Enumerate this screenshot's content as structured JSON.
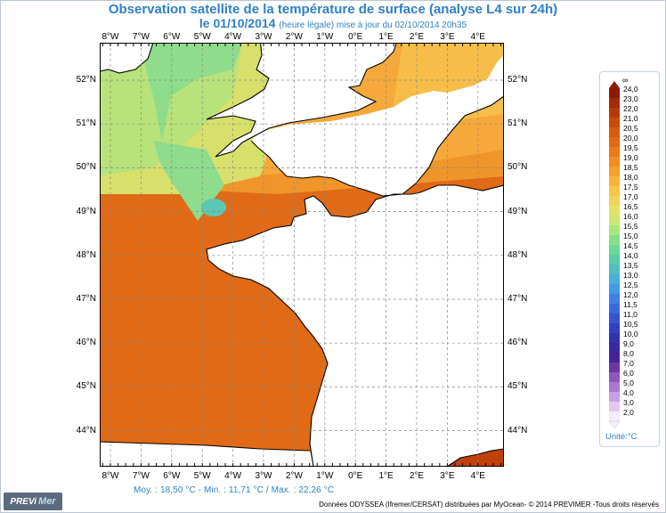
{
  "title": {
    "line1": "Observation satellite de la température de surface (analyse L4 sur 24h)",
    "line2_date": "le 01/10/2014",
    "line2_note": "(heure légale) mise à jour du 02/10/2014 20h35"
  },
  "axes": {
    "lon_labels": [
      "8°W",
      "7°W",
      "6°W",
      "5°W",
      "4°W",
      "3°W",
      "2°W",
      "1°W",
      "0°E",
      "1°E",
      "2°E",
      "3°E",
      "4°E"
    ],
    "lat_labels": [
      "52°N",
      "51°N",
      "50°N",
      "49°N",
      "48°N",
      "47°N",
      "46°N",
      "45°N",
      "44°N"
    ]
  },
  "legend": {
    "top_mark": "∞",
    "labels": [
      "24,0",
      "23,0",
      "22,0",
      "21,0",
      "20,5",
      "20,0",
      "19,5",
      "19,0",
      "18,5",
      "18,0",
      "17,5",
      "17,0",
      "16,5",
      "16,0",
      "15,5",
      "15,0",
      "14,5",
      "14,0",
      "13,5",
      "13,0",
      "12,5",
      "12,0",
      "11,5",
      "11,0",
      "10,5",
      "10,0",
      "9,0",
      "8,0",
      "7,0",
      "6,0",
      "5,0",
      "4,0",
      "3,0",
      "2,0"
    ],
    "unit": "Unité:°C",
    "colors": [
      "#8b1a00",
      "#a32a00",
      "#b83a06",
      "#c94a0a",
      "#d75a10",
      "#e26a14",
      "#ec7a1a",
      "#f28c22",
      "#f6a02e",
      "#f8b43a",
      "#f6c648",
      "#f0d458",
      "#e4e264",
      "#cce872",
      "#a8e67e",
      "#86e08a",
      "#6ad896",
      "#5ccaa8",
      "#52bcc0",
      "#4aaed6",
      "#4498e6",
      "#3e80e8",
      "#3a68e0",
      "#3652d4",
      "#3440c4",
      "#3432b0",
      "#3a28a0",
      "#4a2298",
      "#6a38a8",
      "#8c58c0",
      "#aa7ad2",
      "#c8a0e2",
      "#e2c8f0",
      "#f4ecfa"
    ]
  },
  "stats": "Moy. : 18,50 °C   -   Min. : 11,71 °C / Max. : 22,26 °C",
  "credits": "Données ODYSSEA (Ifremer/CERSAT) distribuées par MyOcean- © 2014 PREVIMER -Tous droits réservés",
  "logo": {
    "part1": "PREVi",
    "part2": "Mer"
  },
  "sst_colors": {
    "warm_south": "#e06a16",
    "mid": "#f0952a",
    "channel": "#f7a83a",
    "north_sea": "#f6be48",
    "cool": "#d8e06c",
    "celtic": "#b8e27a",
    "irish": "#8edc8c",
    "coldpatch": "#5cc8b4",
    "land": "#ffffff"
  }
}
